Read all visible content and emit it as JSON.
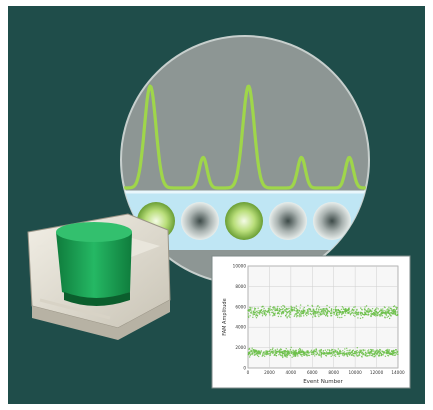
{
  "chart_data": {
    "type": "scatter",
    "title": "",
    "xlabel": "Event Number",
    "ylabel": "FAM Amplitude",
    "xlim": [
      0,
      14000
    ],
    "ylim": [
      0,
      10000
    ],
    "x_ticks": [
      "0",
      "2000",
      "4000",
      "6000",
      "8000",
      "10000",
      "12000",
      "14000"
    ],
    "y_ticks": [
      "0",
      "2000",
      "4000",
      "6000",
      "8000",
      "10000"
    ],
    "grid": true,
    "series": [
      {
        "band_center": 5500,
        "band_spread": 500,
        "color": "#6cc04a"
      },
      {
        "band_center": 1500,
        "band_spread": 350,
        "color": "#6cc04a"
      }
    ]
  },
  "colors": {
    "background": "#1f4d4a",
    "trace": "#9fd64a",
    "instrument_lid": "#1fae5a",
    "bubble_fill": "#8d9694"
  },
  "droplets": [
    {
      "type": "positive"
    },
    {
      "type": "negative"
    },
    {
      "type": "positive"
    },
    {
      "type": "negative"
    },
    {
      "type": "negative"
    }
  ],
  "trace_peaks": [
    {
      "position": 0.12,
      "height": 1.0
    },
    {
      "position": 0.33,
      "height": 0.3
    },
    {
      "position": 0.51,
      "height": 1.0
    },
    {
      "position": 0.72,
      "height": 0.3
    },
    {
      "position": 0.91,
      "height": 0.3
    }
  ]
}
